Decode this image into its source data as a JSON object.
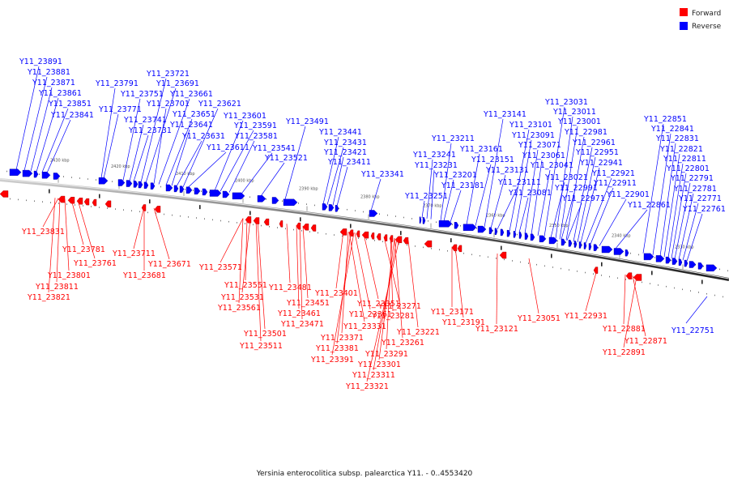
{
  "legend": {
    "forward": {
      "label": "Forward",
      "color": "#ff0000"
    },
    "reverse": {
      "label": "Reverse",
      "color": "#0000ff"
    }
  },
  "caption": "Yersinia enterocolitica subsp. palearctica Y11. - 0..4553420",
  "ticks": [
    "2430 kbp",
    "2420 kbp",
    "2410 kbp",
    "2400 kbp",
    "2390 kbp",
    "2380 kbp",
    "2370 kbp",
    "2360 kbp",
    "2350 kbp",
    "2340 kbp",
    "2330 kbp"
  ],
  "reverse_genes": [
    "Y11_23891",
    "Y11_23881",
    "Y11_23871",
    "Y11_23861",
    "Y11_23851",
    "Y11_23841",
    "Y11_23791",
    "Y11_23771",
    "Y11_23751",
    "Y11_23741",
    "Y11_23731",
    "Y11_23721",
    "Y11_23691",
    "Y11_23701",
    "Y11_23661",
    "Y11_23651",
    "Y11_23641",
    "Y11_23631",
    "Y11_23621",
    "Y11_23611",
    "Y11_23601",
    "Y11_23591",
    "Y11_23581",
    "Y11_23541",
    "Y11_23521",
    "Y11_23491",
    "Y11_23441",
    "Y11_23431",
    "Y11_23421",
    "Y11_23411",
    "Y11_23341",
    "Y11_23251",
    "Y11_23241",
    "Y11_23231",
    "Y11_23211",
    "Y11_23201",
    "Y11_23181",
    "Y11_23161",
    "Y11_23151",
    "Y11_23141",
    "Y11_23131",
    "Y11_23111",
    "Y11_23101",
    "Y11_23091",
    "Y11_23081",
    "Y11_23071",
    "Y11_23061",
    "Y11_23041",
    "Y11_23031",
    "Y11_23021",
    "Y11_23011",
    "Y11_23001",
    "Y11_22991",
    "Y11_22981",
    "Y11_22971",
    "Y11_22961",
    "Y11_22951",
    "Y11_22941",
    "Y11_22921",
    "Y11_22911",
    "Y11_22901",
    "Y11_22861",
    "Y11_22851",
    "Y11_22841",
    "Y11_22831",
    "Y11_22821",
    "Y11_22811",
    "Y11_22801",
    "Y11_22791",
    "Y11_22781",
    "Y11_22771",
    "Y11_22761",
    "Y11_22751"
  ],
  "forward_genes": [
    "Y11_23831",
    "Y11_23781",
    "Y11_23761",
    "Y11_23801",
    "Y11_23811",
    "Y11_23821",
    "Y11_23711",
    "Y11_23671",
    "Y11_23681",
    "Y11_23571",
    "Y11_23551",
    "Y11_23531",
    "Y11_23561",
    "Y11_23481",
    "Y11_23451",
    "Y11_23461",
    "Y11_23471",
    "Y11_23501",
    "Y11_23511",
    "Y11_23401",
    "Y11_23351",
    "Y11_23361",
    "Y11_23331",
    "Y11_23371",
    "Y11_23381",
    "Y11_23391",
    "Y11_23271",
    "Y11_23281",
    "Y11_23291",
    "Y11_23301",
    "Y11_23311",
    "Y11_23321",
    "Y11_23261",
    "Y11_23221",
    "Y11_23171",
    "Y11_23191",
    "Y11_23121",
    "Y11_23051",
    "Y11_22931",
    "Y11_22881",
    "Y11_22871",
    "Y11_22891"
  ]
}
